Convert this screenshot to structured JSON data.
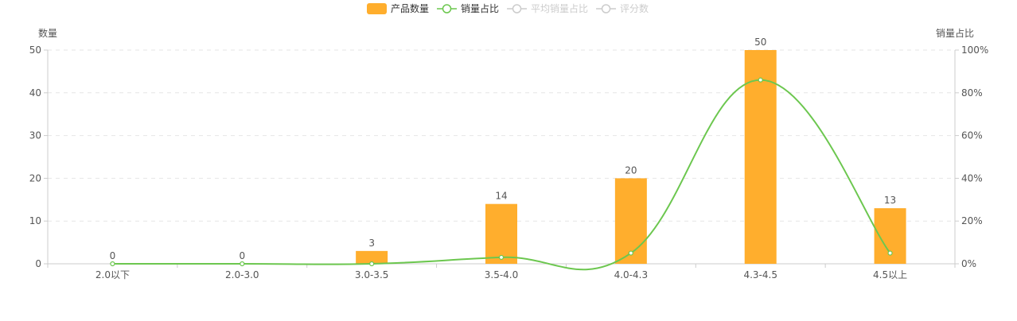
{
  "chart_data": {
    "type": "bar",
    "categories": [
      "2.0以下",
      "2.0-3.0",
      "3.0-3.5",
      "3.5-4.0",
      "4.0-4.3",
      "4.3-4.5",
      "4.5以上"
    ],
    "series": [
      {
        "name": "产品数量",
        "type": "bar",
        "axis": "left",
        "values": [
          0,
          0,
          3,
          14,
          20,
          50,
          13
        ],
        "show_labels": true
      },
      {
        "name": "销量占比",
        "type": "line",
        "axis": "right",
        "values": [
          0,
          0,
          0,
          3,
          5,
          86,
          5
        ],
        "unit": "%"
      }
    ],
    "legend": [
      {
        "name": "产品数量",
        "kind": "bar",
        "active": true
      },
      {
        "name": "销量占比",
        "kind": "line",
        "active": true
      },
      {
        "name": "平均销量占比",
        "kind": "line",
        "active": false
      },
      {
        "name": "评分数",
        "kind": "line",
        "active": false
      }
    ],
    "ylabel_left": "数量",
    "ylabel_right": "销量占比",
    "ylim_left": [
      0,
      50
    ],
    "ylim_right": [
      0,
      100
    ],
    "yticks_left": [
      "0",
      "10",
      "20",
      "30",
      "40",
      "50"
    ],
    "yticks_right": [
      "0%",
      "20%",
      "40%",
      "60%",
      "80%",
      "100%"
    ],
    "grid": true,
    "legend_position": "top-center",
    "colors": {
      "bar": "#ffae2d",
      "line": "#6cc74f",
      "inactive": "#cccccc",
      "grid": "#e6e6e6",
      "axis": "#cccccc",
      "text": "#555555"
    }
  }
}
